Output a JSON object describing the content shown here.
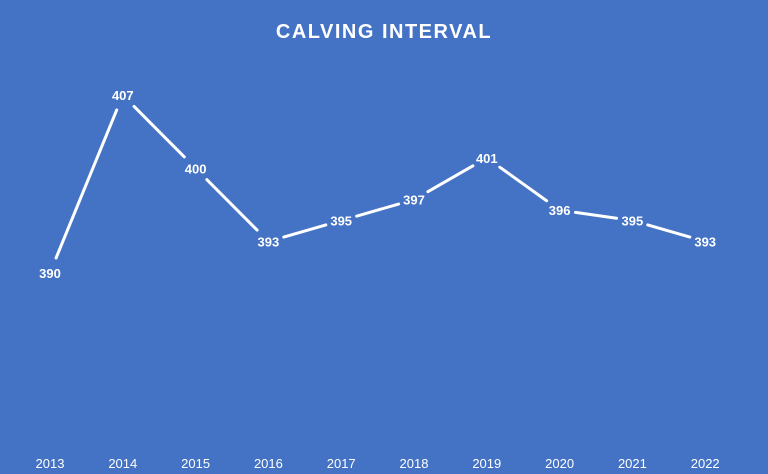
{
  "colors": {
    "background": "#4472C4",
    "line": "#FFFFFF",
    "text": "#FFFFFF"
  },
  "chart_data": {
    "type": "line",
    "title": "CALVING INTERVAL",
    "xlabel": "",
    "ylabel": "",
    "categories": [
      "2013",
      "2014",
      "2015",
      "2016",
      "2017",
      "2018",
      "2019",
      "2020",
      "2021",
      "2022"
    ],
    "series": [
      {
        "values": [
          390,
          407,
          400,
          393,
          395,
          397,
          401,
          396,
          395,
          393
        ]
      }
    ],
    "ylim": [
      374,
      414
    ],
    "data_labels": true,
    "drop_lines": true,
    "grid": false,
    "legend": "none"
  }
}
